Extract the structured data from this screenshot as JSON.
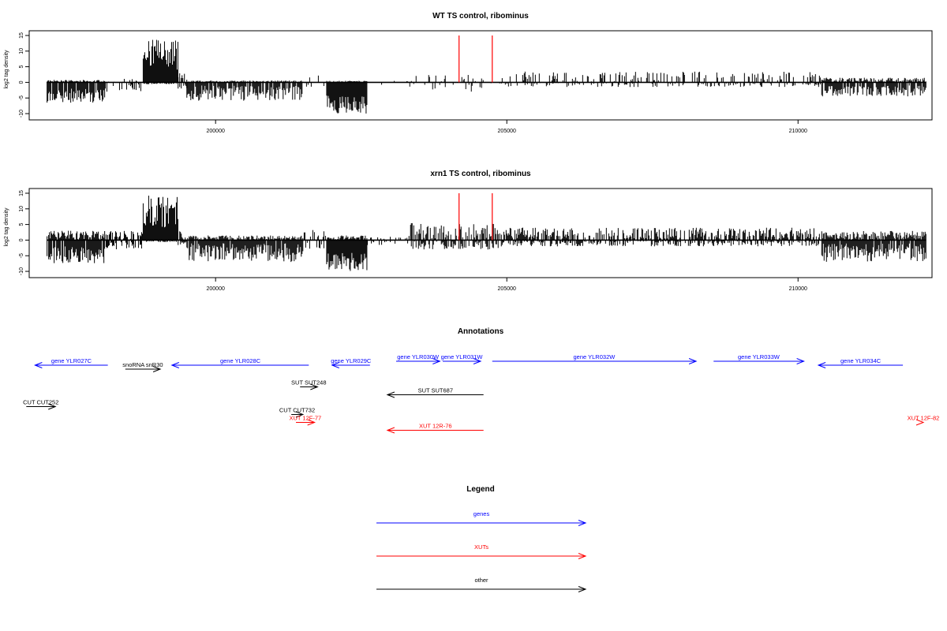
{
  "colors": {
    "gene": "#0000ff",
    "xut": "#ff0000",
    "other": "#000000",
    "marker": "#ff0000",
    "bar": "#000000"
  },
  "chart_data": [
    {
      "type": "bar",
      "title": "WT TS control, ribominus",
      "ylabel": "log2 tag density",
      "xlim": [
        196800,
        212300
      ],
      "ylim": [
        -11,
        15.5
      ],
      "yticks": [
        15,
        10,
        5,
        0,
        -5,
        -10
      ],
      "xticks": [
        200000,
        205000,
        210000
      ],
      "xtick_labels": [
        "200000",
        "205000",
        "210000"
      ],
      "ytick_labels": [
        "15",
        "10",
        "5",
        "0",
        "-5",
        "-10"
      ],
      "markers": [
        204180,
        204750
      ],
      "regions": [
        {
          "start": 197100,
          "end": 198100,
          "pmin": 0,
          "pmax": 0.8,
          "nmin": 2,
          "nmax": 6.5,
          "density": 0.9
        },
        {
          "start": 198100,
          "end": 198750,
          "pmin": 0,
          "pmax": 1.2,
          "nmin": 0.5,
          "nmax": 3,
          "density": 0.3
        },
        {
          "start": 198750,
          "end": 199350,
          "pmin": 4,
          "pmax": 14,
          "nmin": 0,
          "nmax": 0.6,
          "density": 1.0
        },
        {
          "start": 199350,
          "end": 199500,
          "pmin": 0.5,
          "pmax": 3,
          "nmin": 0.5,
          "nmax": 2,
          "density": 0.7
        },
        {
          "start": 199500,
          "end": 201500,
          "pmin": 0,
          "pmax": 0.6,
          "nmin": 1,
          "nmax": 6,
          "density": 0.85
        },
        {
          "start": 201500,
          "end": 201900,
          "pmin": 0,
          "pmax": 2.5,
          "nmin": 0,
          "nmax": 1.5,
          "density": 0.15
        },
        {
          "start": 201900,
          "end": 202600,
          "pmin": 0,
          "pmax": 0.5,
          "nmin": 4,
          "nmax": 10,
          "density": 1.0
        },
        {
          "start": 202600,
          "end": 203300,
          "pmin": 0,
          "pmax": 0.5,
          "nmin": 0,
          "nmax": 1,
          "density": 0.05
        },
        {
          "start": 203300,
          "end": 204900,
          "pmin": 0,
          "pmax": 2.5,
          "nmin": 0,
          "nmax": 3,
          "density": 0.12
        },
        {
          "start": 204900,
          "end": 210400,
          "pmin": 0.3,
          "pmax": 3.5,
          "nmin": 0,
          "nmax": 1.5,
          "density": 0.3
        },
        {
          "start": 210400,
          "end": 212200,
          "pmin": 0,
          "pmax": 1.5,
          "nmin": 1,
          "nmax": 4.5,
          "density": 0.85
        }
      ]
    },
    {
      "type": "bar",
      "title": "xrn1 TS control, ribominus",
      "ylabel": "log2 tag density",
      "xlim": [
        196800,
        212300
      ],
      "ylim": [
        -11,
        15.5
      ],
      "yticks": [
        15,
        10,
        5,
        0,
        -5,
        -10
      ],
      "xticks": [
        200000,
        205000,
        210000
      ],
      "xtick_labels": [
        "200000",
        "205000",
        "210000"
      ],
      "ytick_labels": [
        "15",
        "10",
        "5",
        "0",
        "-5",
        "-10"
      ],
      "markers": [
        204180,
        204750
      ],
      "regions": [
        {
          "start": 197100,
          "end": 198100,
          "pmin": 0,
          "pmax": 3,
          "nmin": 2,
          "nmax": 7.5,
          "density": 0.95
        },
        {
          "start": 198100,
          "end": 198750,
          "pmin": 0,
          "pmax": 3,
          "nmin": 0.5,
          "nmax": 3,
          "density": 0.5
        },
        {
          "start": 198750,
          "end": 199350,
          "pmin": 4,
          "pmax": 14.5,
          "nmin": 0,
          "nmax": 0.6,
          "density": 1.0
        },
        {
          "start": 199350,
          "end": 199500,
          "pmin": 0.5,
          "pmax": 3,
          "nmin": 0.5,
          "nmax": 2,
          "density": 0.7
        },
        {
          "start": 199500,
          "end": 201500,
          "pmin": 0,
          "pmax": 1.5,
          "nmin": 1,
          "nmax": 7,
          "density": 0.95
        },
        {
          "start": 201500,
          "end": 201900,
          "pmin": 0,
          "pmax": 3.5,
          "nmin": 0,
          "nmax": 3,
          "density": 0.35
        },
        {
          "start": 201900,
          "end": 202600,
          "pmin": 0,
          "pmax": 1.5,
          "nmin": 4,
          "nmax": 10,
          "density": 1.0
        },
        {
          "start": 202600,
          "end": 203300,
          "pmin": 0,
          "pmax": 1.5,
          "nmin": 0,
          "nmax": 2,
          "density": 0.2
        },
        {
          "start": 203300,
          "end": 204900,
          "pmin": 0.5,
          "pmax": 5.5,
          "nmin": 0,
          "nmax": 3,
          "density": 0.6
        },
        {
          "start": 204900,
          "end": 210400,
          "pmin": 0.5,
          "pmax": 4,
          "nmin": 0,
          "nmax": 2,
          "density": 0.6
        },
        {
          "start": 210400,
          "end": 212200,
          "pmin": 0,
          "pmax": 3,
          "nmin": 1,
          "nmax": 7,
          "density": 0.95
        }
      ]
    }
  ],
  "annotations": {
    "title": "Annotations",
    "features": [
      {
        "label": "gene YLR027C",
        "kind": "gene",
        "start": 196900,
        "end": 198150,
        "strand": "-",
        "row": 0
      },
      {
        "label": "snoRNA snR30",
        "kind": "other",
        "start": 198450,
        "end": 199050,
        "strand": "+",
        "row": 0.5
      },
      {
        "label": "gene YLR028C",
        "kind": "gene",
        "start": 199250,
        "end": 201600,
        "strand": "-",
        "row": 0
      },
      {
        "label": "gene YLR029C",
        "kind": "gene",
        "start": 202000,
        "end": 202650,
        "strand": "-",
        "row": 0
      },
      {
        "label": "gene YLR030W",
        "kind": "gene",
        "start": 203100,
        "end": 203850,
        "strand": "+",
        "row": -0.5
      },
      {
        "label": "gene YLR031W",
        "kind": "gene",
        "start": 203900,
        "end": 204550,
        "strand": "+",
        "row": -0.5
      },
      {
        "label": "gene YLR032W",
        "kind": "gene",
        "start": 204750,
        "end": 208250,
        "strand": "+",
        "row": -0.5
      },
      {
        "label": "gene YLR033W",
        "kind": "gene",
        "start": 208550,
        "end": 210100,
        "strand": "+",
        "row": -0.5
      },
      {
        "label": "gene YLR034C",
        "kind": "gene",
        "start": 210350,
        "end": 211800,
        "strand": "-",
        "row": 0
      },
      {
        "label": "SUT SUT248",
        "kind": "other",
        "start": 201450,
        "end": 201750,
        "strand": "+",
        "row": 2.75
      },
      {
        "label": "SUT SUT687",
        "kind": "other",
        "start": 202950,
        "end": 204600,
        "strand": "-",
        "row": 3.75
      },
      {
        "label": "CUT CUT252",
        "kind": "other",
        "start": 196750,
        "end": 197250,
        "strand": "+",
        "row": 5.25
      },
      {
        "label": "CUT CUT732",
        "kind": "other",
        "start": 201300,
        "end": 201500,
        "strand": "+",
        "row": 6.25
      },
      {
        "label": "XUT 12F-77",
        "kind": "xut",
        "start": 201380,
        "end": 201700,
        "strand": "+",
        "row": 7.25
      },
      {
        "label": "XUT 12R-76",
        "kind": "xut",
        "start": 202950,
        "end": 204600,
        "strand": "-",
        "row": 8.25
      },
      {
        "label": "XUT 12F-82",
        "kind": "xut",
        "start": 212150,
        "end": 212700,
        "strand": "+",
        "row": 7.25
      }
    ]
  },
  "legend": {
    "title": "Legend",
    "items": [
      {
        "label": "genes",
        "kind": "gene"
      },
      {
        "label": "XUTs",
        "kind": "xut"
      },
      {
        "label": "other",
        "kind": "other"
      }
    ]
  }
}
